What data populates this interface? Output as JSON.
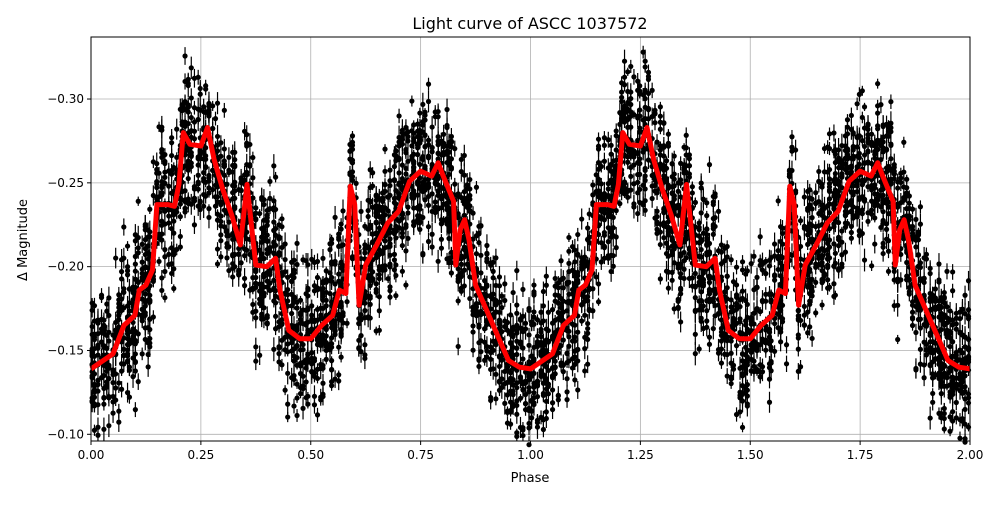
{
  "chart_data": {
    "type": "scatter",
    "title": "Light curve of ASCC 1037572",
    "xlabel": "Phase",
    "ylabel": "Δ Magnitude",
    "xlim": [
      0,
      2
    ],
    "ylim": [
      -0.337,
      -0.096
    ],
    "y_inverted": true,
    "grid": true,
    "x_ticks": [
      "0.00",
      "0.25",
      "0.50",
      "0.75",
      "1.00",
      "1.25",
      "1.50",
      "1.75",
      "2.00"
    ],
    "x_tick_values": [
      0,
      0.25,
      0.5,
      0.75,
      1,
      1.25,
      1.5,
      1.75,
      2
    ],
    "y_ticks": [
      "−0.30",
      "−0.25",
      "−0.20",
      "−0.15",
      "−0.10"
    ],
    "y_tick_values": [
      -0.3,
      -0.25,
      -0.2,
      -0.15,
      -0.1
    ],
    "observations": {
      "color": "#000000",
      "marker": "dot with error bars",
      "scatter_about_model": 0.04,
      "period_repeat": 1
    },
    "model_curve": {
      "color": "#ff0000",
      "repeat_period": 1,
      "phase": [
        0,
        0.05,
        0.075,
        0.1,
        0.11,
        0.125,
        0.14,
        0.15,
        0.175,
        0.19,
        0.2,
        0.21,
        0.225,
        0.25,
        0.265,
        0.28,
        0.3,
        0.32,
        0.34,
        0.355,
        0.365,
        0.375,
        0.4,
        0.42,
        0.43,
        0.45,
        0.475,
        0.5,
        0.525,
        0.55,
        0.565,
        0.58,
        0.59,
        0.6,
        0.61,
        0.625,
        0.65,
        0.675,
        0.7,
        0.725,
        0.75,
        0.775,
        0.79,
        0.8,
        0.825,
        0.83,
        0.84,
        0.85,
        0.86,
        0.875,
        0.9,
        0.925,
        0.95,
        0.975,
        1.0
      ],
      "magnitude": [
        -0.139,
        -0.148,
        -0.165,
        -0.171,
        -0.186,
        -0.189,
        -0.198,
        -0.237,
        -0.237,
        -0.236,
        -0.249,
        -0.28,
        -0.273,
        -0.272,
        -0.283,
        -0.264,
        -0.246,
        -0.231,
        -0.213,
        -0.249,
        -0.225,
        -0.201,
        -0.2,
        -0.205,
        -0.186,
        -0.162,
        -0.157,
        -0.157,
        -0.165,
        -0.171,
        -0.186,
        -0.184,
        -0.248,
        -0.237,
        -0.177,
        -0.201,
        -0.213,
        -0.226,
        -0.233,
        -0.251,
        -0.257,
        -0.254,
        -0.262,
        -0.255,
        -0.239,
        -0.201,
        -0.222,
        -0.228,
        -0.216,
        -0.189,
        -0.174,
        -0.159,
        -0.144,
        -0.14,
        -0.139
      ]
    }
  }
}
